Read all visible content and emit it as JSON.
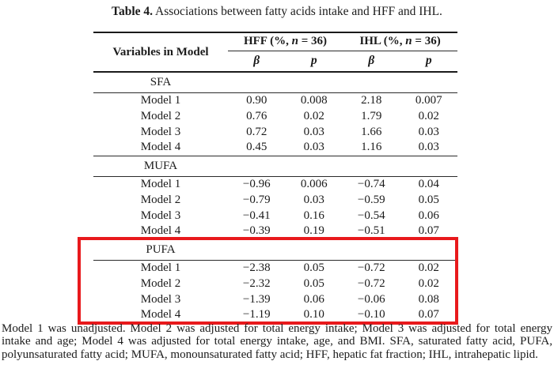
{
  "title": {
    "label": "Table 4.",
    "text": " Associations between fatty acids intake and HFF and IHL."
  },
  "table": {
    "col1_header": "Variables in Model",
    "groups": [
      {
        "prefix": "HFF (%, ",
        "n": "n",
        "suffix": " = 36)"
      },
      {
        "prefix": "IHL (%, ",
        "n": "n",
        "suffix": " = 36)"
      }
    ],
    "subheaders": [
      "β",
      "p",
      "β",
      "p"
    ],
    "sections": [
      {
        "name": "SFA",
        "highlighted": false,
        "rows": [
          {
            "label": "Model 1",
            "values": [
              "0.90",
              "0.008",
              "2.18",
              "0.007"
            ]
          },
          {
            "label": "Model 2",
            "values": [
              "0.76",
              "0.02",
              "1.79",
              "0.02"
            ]
          },
          {
            "label": "Model 3",
            "values": [
              "0.72",
              "0.03",
              "1.66",
              "0.03"
            ]
          },
          {
            "label": "Model 4",
            "values": [
              "0.45",
              "0.03",
              "1.16",
              "0.03"
            ]
          }
        ]
      },
      {
        "name": "MUFA",
        "highlighted": false,
        "rows": [
          {
            "label": "Model 1",
            "values": [
              "−0.96",
              "0.006",
              "−0.74",
              "0.04"
            ]
          },
          {
            "label": "Model 2",
            "values": [
              "−0.79",
              "0.03",
              "−0.59",
              "0.05"
            ]
          },
          {
            "label": "Model 3",
            "values": [
              "−0.41",
              "0.16",
              "−0.54",
              "0.06"
            ]
          },
          {
            "label": "Model 4",
            "values": [
              "−0.39",
              "0.19",
              "−0.51",
              "0.07"
            ]
          }
        ]
      },
      {
        "name": "PUFA",
        "highlighted": true,
        "rows": [
          {
            "label": "Model 1",
            "values": [
              "−2.38",
              "0.05",
              "−0.72",
              "0.02"
            ]
          },
          {
            "label": "Model 2",
            "values": [
              "−2.32",
              "0.05",
              "−0.72",
              "0.02"
            ]
          },
          {
            "label": "Model 3",
            "values": [
              "−1.39",
              "0.06",
              "−0.06",
              "0.08"
            ]
          },
          {
            "label": "Model 4",
            "values": [
              "−1.19",
              "0.10",
              "−0.10",
              "0.07"
            ]
          }
        ]
      }
    ]
  },
  "highlight": {
    "color": "#e8191c",
    "note": "red box around PUFA section"
  },
  "footnote": {
    "text": "Model 1 was unadjusted. Model 2 was adjusted for total energy intake; Model 3 was adjusted for total energy intake and age; Model 4 was adjusted for total energy intake, age, and BMI. SFA, saturated fatty acid, PUFA, polyunsaturated fatty acid; MUFA, monounsaturated fatty acid; HFF, hepatic fat fraction; IHL, intrahepatic lipid."
  }
}
